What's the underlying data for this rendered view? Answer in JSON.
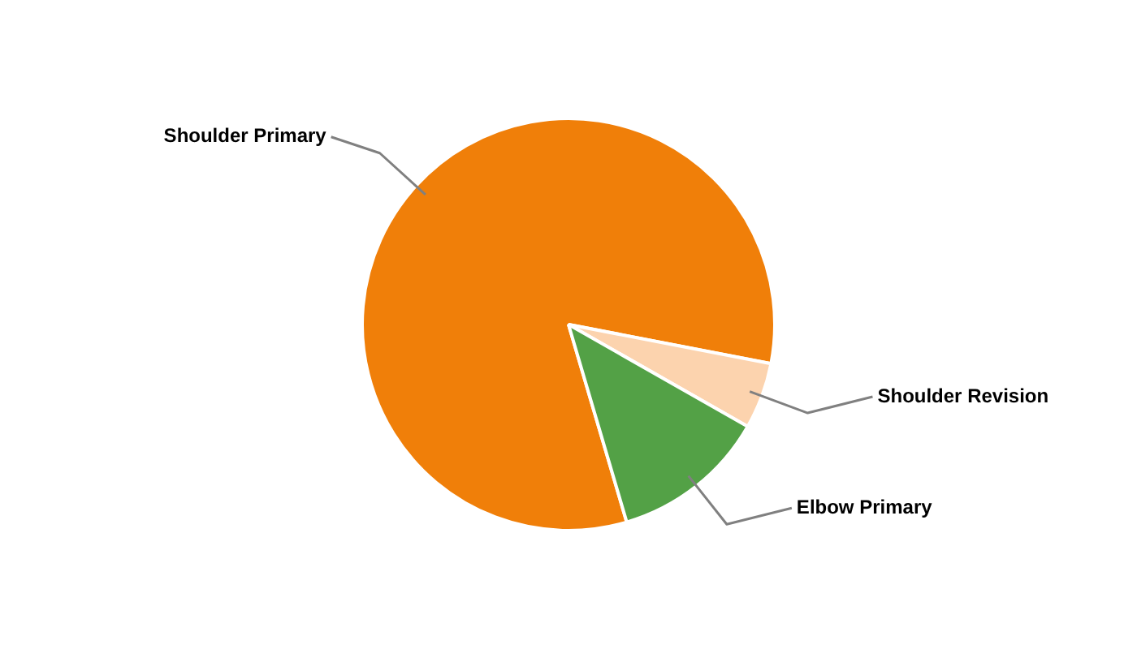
{
  "chart_data": {
    "type": "pie",
    "categories": [
      "Shoulder Primary",
      "Shoulder Revision",
      "Elbow Primary"
    ],
    "values": [
      82.6,
      5.2,
      12.2
    ],
    "colors": [
      "#f07f09",
      "#fcd3ae",
      "#53a146"
    ],
    "legend": false
  }
}
